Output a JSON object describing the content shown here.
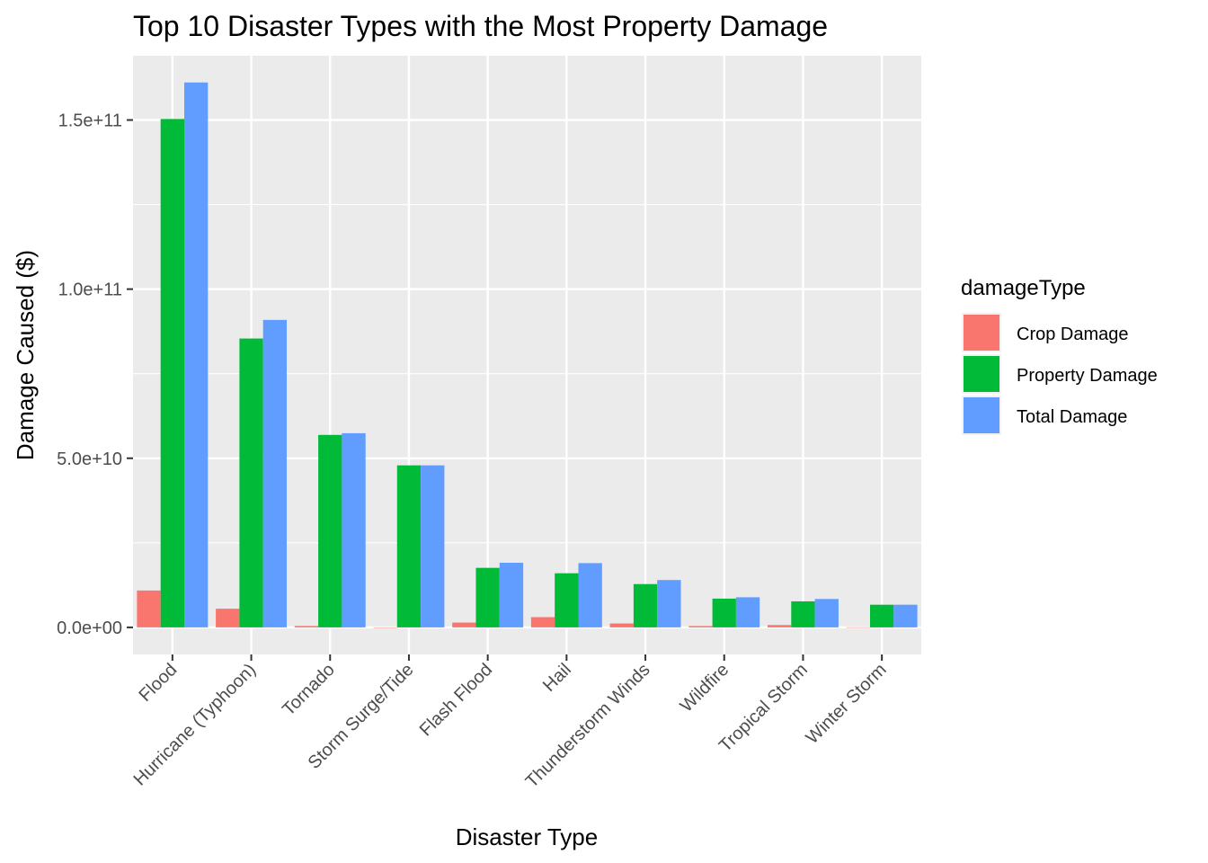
{
  "chart_data": {
    "type": "bar",
    "title": "Top 10 Disaster Types with the Most Property Damage",
    "xlabel": "Disaster Type",
    "ylabel": "Damage Caused ($)",
    "categories": [
      "Flood",
      "Hurricane (Typhoon)",
      "Tornado",
      "Storm Surge/Tide",
      "Flash Flood",
      "Hail",
      "Thunderstorm Winds",
      "Wildfire",
      "Tropical Storm",
      "Winter Storm"
    ],
    "series": [
      {
        "name": "Crop Damage",
        "color": "#F8766D",
        "values": [
          10900000000,
          5520000000,
          420000000,
          850000,
          1420000000,
          3030000000,
          1160000000,
          400000000,
          690000000,
          27000000
        ]
      },
      {
        "name": "Property Damage",
        "color": "#00BA38",
        "values": [
          150300000000,
          85400000000,
          56900000000,
          47900000000,
          17600000000,
          16000000000,
          12800000000,
          8500000000,
          7700000000,
          6700000000
        ]
      },
      {
        "name": "Total Damage",
        "color": "#619CFF",
        "values": [
          161100000000,
          90900000000,
          57400000000,
          47900000000,
          19100000000,
          19000000000,
          14000000000,
          8900000000,
          8400000000,
          6700000000
        ]
      }
    ],
    "y_ticks": [
      0,
      50000000000,
      100000000000,
      150000000000
    ],
    "y_tick_labels": [
      "0.0e+00",
      "5.0e+10",
      "1.0e+11",
      "1.5e+11"
    ],
    "ylim": [
      -8000000000,
      169000000000
    ],
    "grid": true,
    "legend": {
      "title": "damageType",
      "position": "right"
    }
  }
}
